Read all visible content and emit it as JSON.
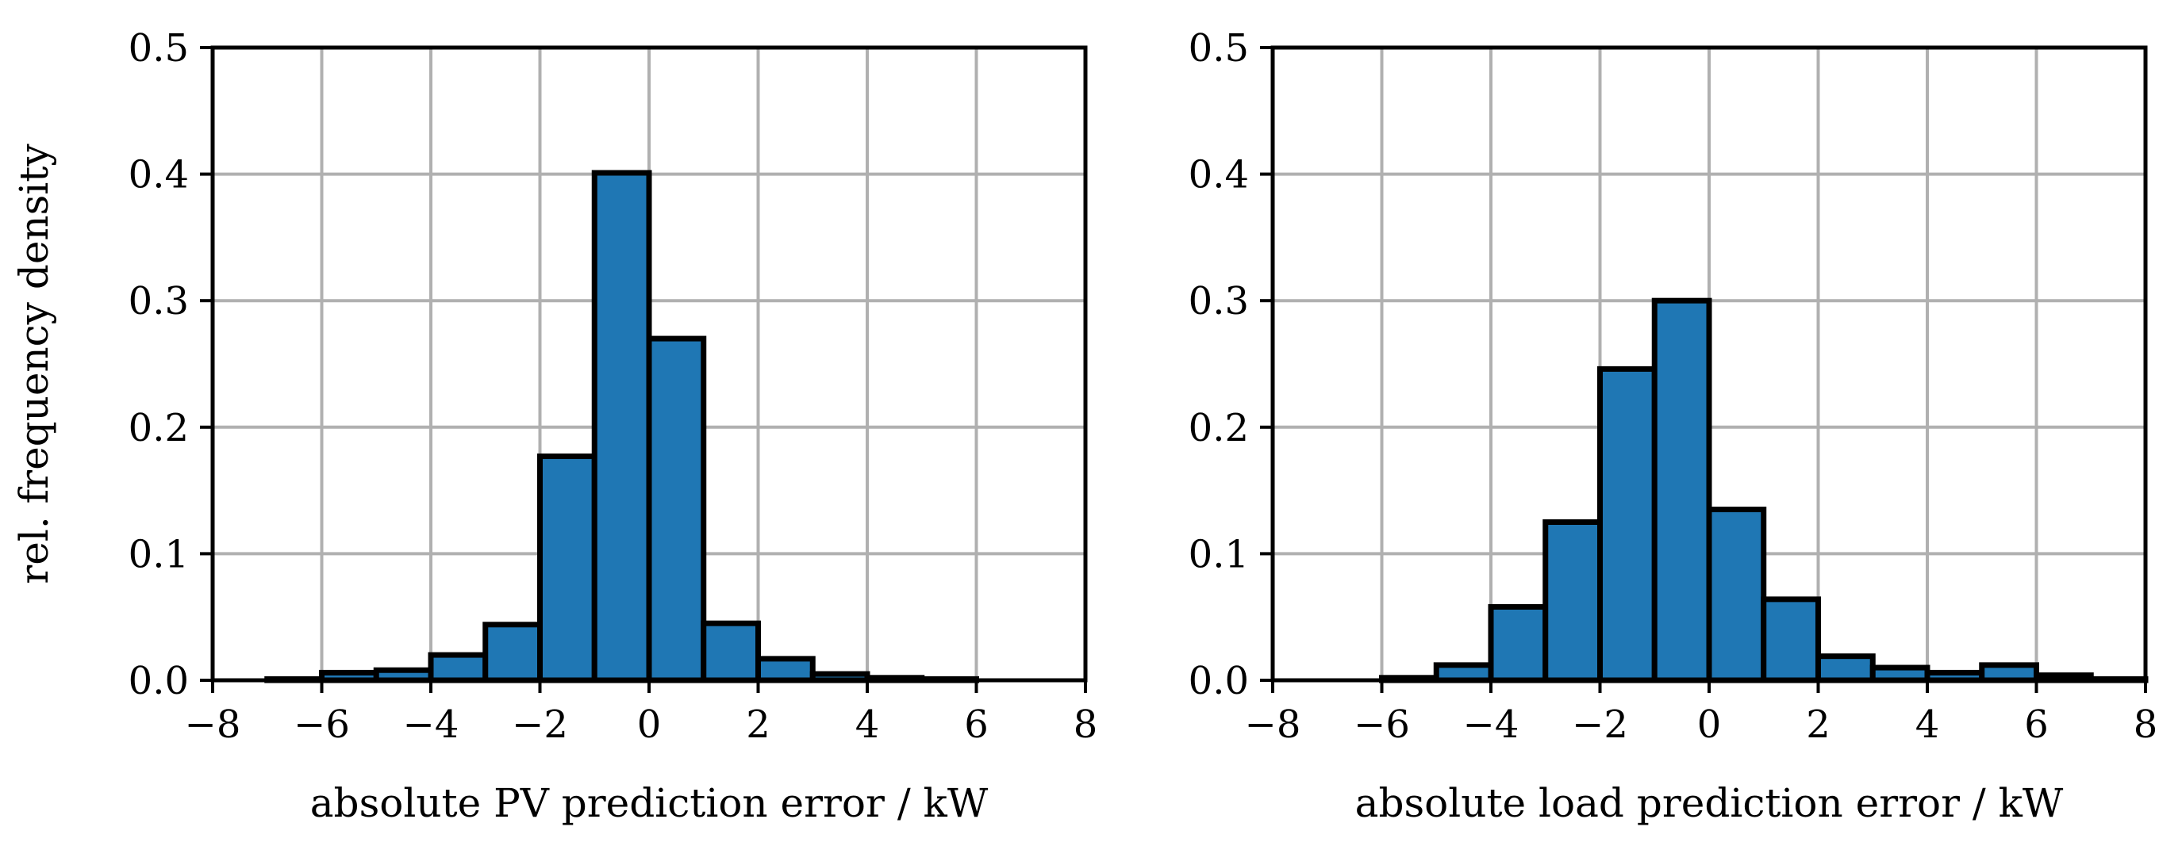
{
  "chart_data": [
    {
      "type": "bar",
      "title": "",
      "xlabel": "absolute PV prediction error / kW",
      "ylabel": "rel. frequency density",
      "xlim": [
        -8,
        8
      ],
      "ylim": [
        0,
        0.5
      ],
      "xticks": [
        -8,
        -6,
        -4,
        -2,
        0,
        2,
        4,
        6,
        8
      ],
      "yticks": [
        0.0,
        0.1,
        0.2,
        0.3,
        0.4,
        0.5
      ],
      "xtick_labels": [
        "−8",
        "−6",
        "−4",
        "−2",
        "0",
        "2",
        "4",
        "6",
        "8"
      ],
      "ytick_labels": [
        "0.0",
        "0.1",
        "0.2",
        "0.3",
        "0.4",
        "0.5"
      ],
      "grid": true,
      "bin_edges": [
        -8,
        -7,
        -6,
        -5,
        -4,
        -3,
        -2,
        -1,
        0,
        1,
        2,
        3,
        4,
        5,
        6,
        7,
        8
      ],
      "values": [
        0.0,
        0.001,
        0.006,
        0.008,
        0.02,
        0.044,
        0.177,
        0.401,
        0.27,
        0.045,
        0.017,
        0.005,
        0.002,
        0.001,
        0.0,
        0.0
      ],
      "bar_color": "#1f77b4",
      "edge_color": "#000000"
    },
    {
      "type": "bar",
      "title": "",
      "xlabel": "absolute load prediction error / kW",
      "ylabel": "",
      "xlim": [
        -8,
        8
      ],
      "ylim": [
        0,
        0.5
      ],
      "xticks": [
        -8,
        -6,
        -4,
        -2,
        0,
        2,
        4,
        6,
        8
      ],
      "yticks": [
        0.0,
        0.1,
        0.2,
        0.3,
        0.4,
        0.5
      ],
      "xtick_labels": [
        "−8",
        "−6",
        "−4",
        "−2",
        "0",
        "2",
        "4",
        "6",
        "8"
      ],
      "ytick_labels": [
        "0.0",
        "0.1",
        "0.2",
        "0.3",
        "0.4",
        "0.5"
      ],
      "grid": true,
      "bin_edges": [
        -8,
        -7,
        -6,
        -5,
        -4,
        -3,
        -2,
        -1,
        0,
        1,
        2,
        3,
        4,
        5,
        6,
        7,
        8
      ],
      "values": [
        0.0,
        0.0,
        0.002,
        0.012,
        0.058,
        0.125,
        0.246,
        0.3,
        0.135,
        0.064,
        0.019,
        0.01,
        0.006,
        0.012,
        0.004,
        0.001
      ],
      "bar_color": "#1f77b4",
      "edge_color": "#000000"
    }
  ]
}
